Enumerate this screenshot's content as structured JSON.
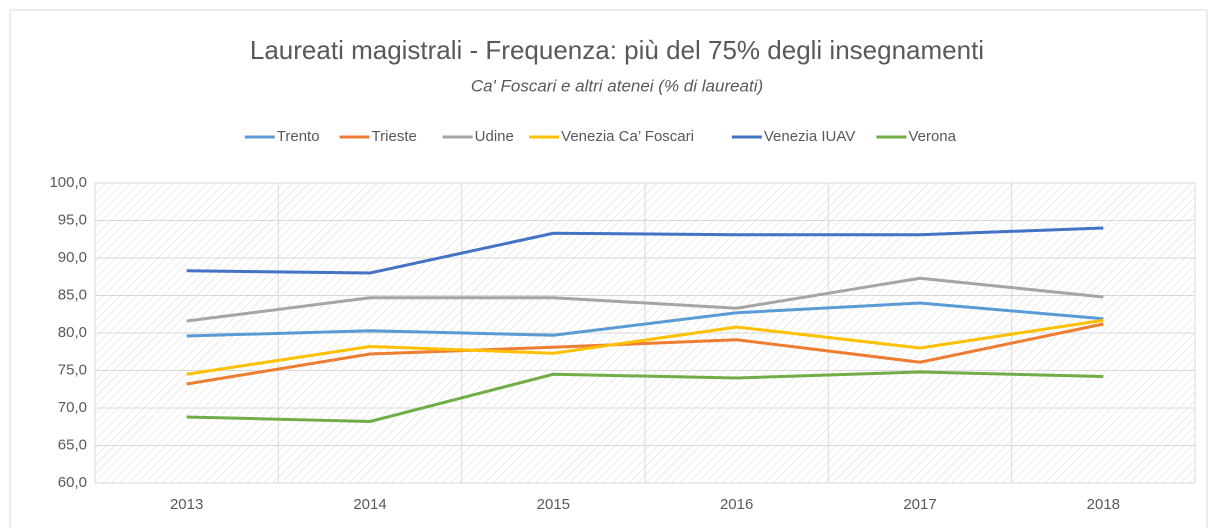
{
  "chart_data": {
    "type": "line",
    "title": "Laureati magistrali - Frequenza: più del 75% degli insegnamenti",
    "subtitle": "Ca' Foscari e altri atenei (% di laureati)",
    "categories": [
      "2013",
      "2014",
      "2015",
      "2016",
      "2017",
      "2018"
    ],
    "series": [
      {
        "name": "Trento",
        "color": "#5b9bd5",
        "values": [
          79.6,
          80.3,
          79.7,
          82.7,
          84.0,
          81.9
        ]
      },
      {
        "name": "Trieste",
        "color": "#ed7d31",
        "values": [
          73.2,
          77.2,
          78.1,
          79.1,
          76.1,
          81.2
        ]
      },
      {
        "name": "Udine",
        "color": "#a5a5a5",
        "values": [
          81.6,
          84.7,
          84.7,
          83.3,
          87.3,
          84.8
        ]
      },
      {
        "name": "Venezia Ca’ Foscari",
        "color": "#ffc000",
        "values": [
          74.5,
          78.2,
          77.3,
          80.8,
          78.0,
          81.7
        ]
      },
      {
        "name": "Venezia IUAV",
        "color": "#4472c4",
        "values": [
          88.3,
          88.0,
          93.3,
          93.1,
          93.1,
          94.0
        ]
      },
      {
        "name": "Verona",
        "color": "#70ad47",
        "values": [
          68.8,
          68.2,
          74.5,
          74.0,
          74.8,
          74.2
        ]
      }
    ],
    "ylim": [
      60,
      100
    ],
    "yticks": [
      {
        "value": 60,
        "label": "60,0"
      },
      {
        "value": 65,
        "label": "65,0"
      },
      {
        "value": 70,
        "label": "70,0"
      },
      {
        "value": 75,
        "label": "75,0"
      },
      {
        "value": 80,
        "label": "80,0"
      },
      {
        "value": 85,
        "label": "85,0"
      },
      {
        "value": 90,
        "label": "90,0"
      },
      {
        "value": 95,
        "label": "95,0"
      },
      {
        "value": 100,
        "label": "100,0"
      }
    ],
    "grid": true,
    "legend": "top"
  }
}
